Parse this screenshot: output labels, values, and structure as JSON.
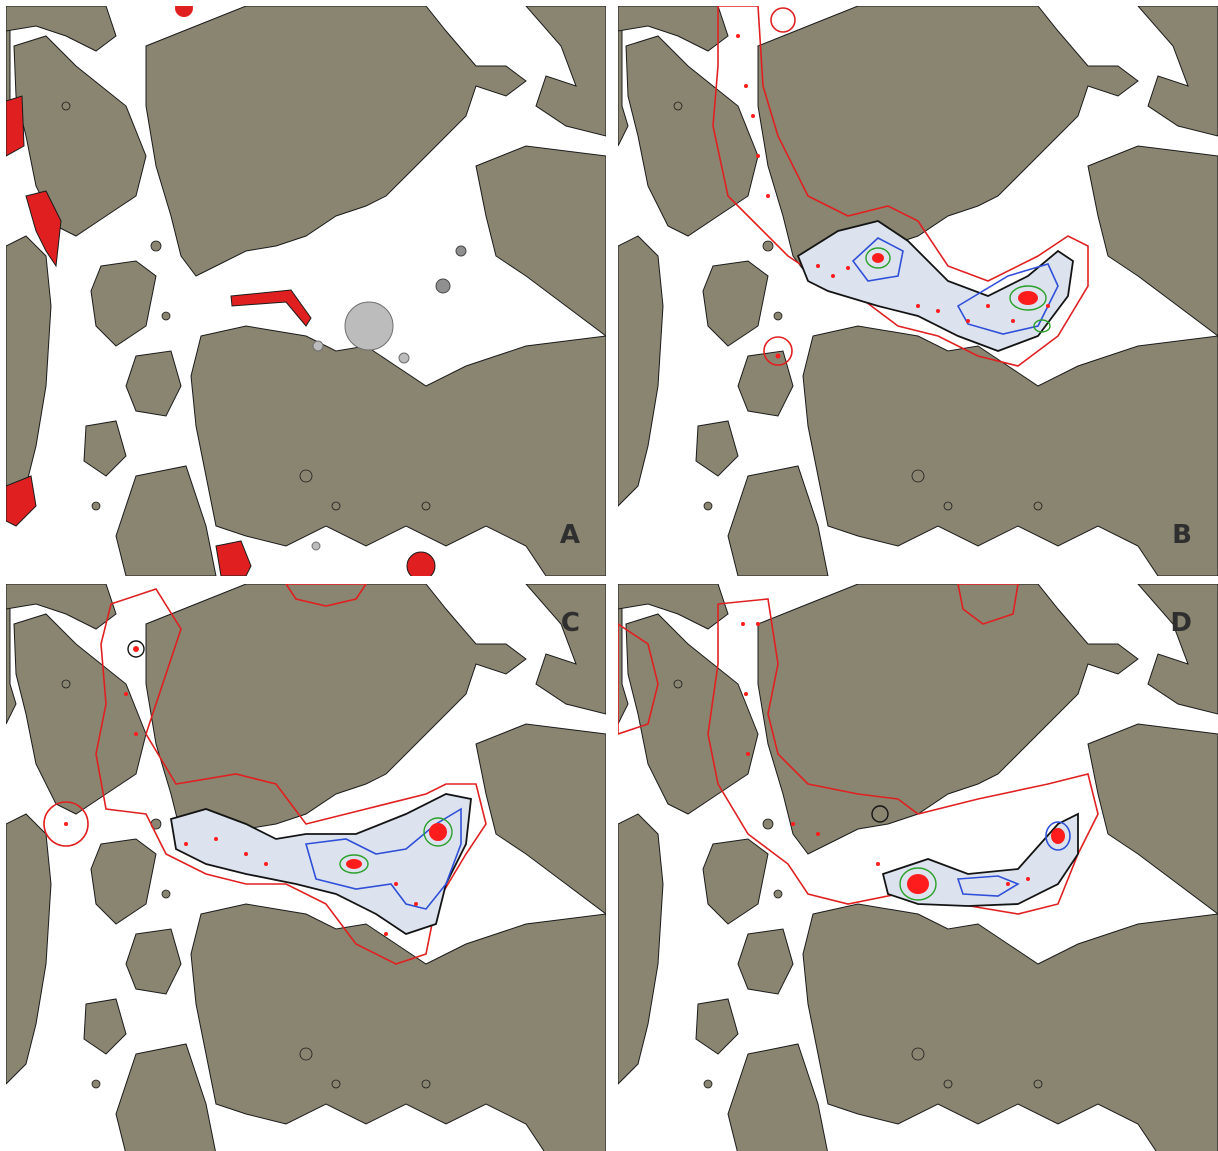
{
  "colors": {
    "land": "#8a8570",
    "water": "#ffffff",
    "coast": "#1b1b1b",
    "range_outer": "#e02020",
    "contour_core": "#2f4fd8",
    "contour_inner": "#2aa02a",
    "contour_mid": "#141414",
    "contour_faint": "#bdbdbd",
    "points": "#ff1c1c",
    "circle_marker": "#bcbcbc"
  },
  "panels": [
    {
      "id": "A",
      "label": "A"
    },
    {
      "id": "B",
      "label": "B"
    },
    {
      "id": "C",
      "label": "C"
    },
    {
      "id": "D",
      "label": "D"
    }
  ]
}
